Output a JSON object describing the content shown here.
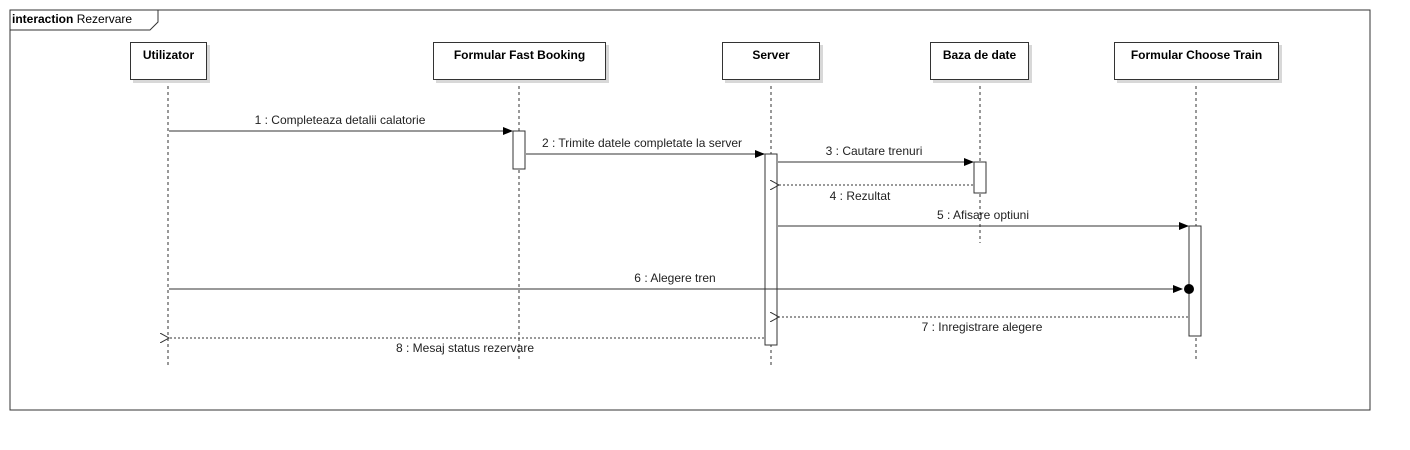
{
  "frame": {
    "keyword": "interaction",
    "name": "Rezervare"
  },
  "lifelines": [
    {
      "id": "utilizator",
      "label": "Utilizator"
    },
    {
      "id": "fast-booking",
      "label": "Formular Fast Booking"
    },
    {
      "id": "server",
      "label": "Server"
    },
    {
      "id": "baza-de-date",
      "label": "Baza de date"
    },
    {
      "id": "choose-train",
      "label": "Formular Choose Train"
    }
  ],
  "messages": [
    {
      "label": "1 : Completeaza detalii calatorie",
      "from": "utilizator",
      "to": "fast-booking",
      "kind": "sync"
    },
    {
      "label": "2 : Trimite datele completate la server",
      "from": "fast-booking",
      "to": "server",
      "kind": "sync"
    },
    {
      "label": "3 : Cautare trenuri",
      "from": "server",
      "to": "baza-de-date",
      "kind": "sync"
    },
    {
      "label": "4 : Rezultat",
      "from": "baza-de-date",
      "to": "server",
      "kind": "return"
    },
    {
      "label": "5 : Afisare optiuni",
      "from": "server",
      "to": "choose-train",
      "kind": "sync"
    },
    {
      "label": "6 : Alegere tren",
      "from": "utilizator",
      "to": "choose-train",
      "kind": "sync"
    },
    {
      "label": "7 : Inregistrare alegere",
      "from": "choose-train",
      "to": "server",
      "kind": "return"
    },
    {
      "label": "8 : Mesaj status rezervare",
      "from": "server",
      "to": "utilizator",
      "kind": "return"
    }
  ]
}
